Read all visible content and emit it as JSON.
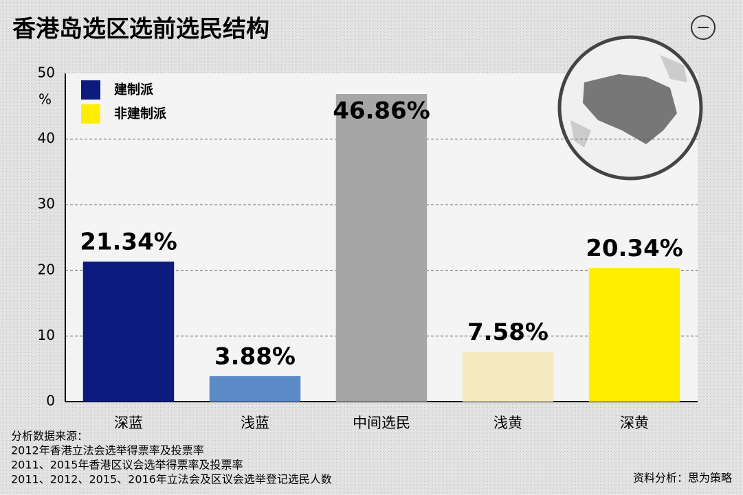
{
  "chart_data": {
    "type": "bar",
    "title": "香港岛选区选前选民结构",
    "y_label": "%",
    "categories": [
      "深蓝",
      "浅蓝",
      "中间选民",
      "浅黄",
      "深黄"
    ],
    "values": [
      21.34,
      3.88,
      46.86,
      7.58,
      20.34
    ],
    "value_labels": [
      "21.34%",
      "3.88%",
      "46.86%",
      "7.58%",
      "20.34%"
    ],
    "colors": [
      "#0d1a7e",
      "#5b8ac6",
      "#a6a6a6",
      "#f5e9c0",
      "#ffee00"
    ],
    "legend": [
      {
        "name": "建制派",
        "color": "#0d1a7e"
      },
      {
        "name": "非建制派",
        "color": "#ffee00"
      }
    ],
    "ylim": [
      0,
      50
    ],
    "yticks": [
      0,
      10,
      20,
      30,
      40,
      50
    ],
    "grid": true,
    "source": [
      "分析数据来源：",
      "2012年香港立法会选举得票率及投票率",
      "2011、2015年香港区议会选举得票率及投票率",
      "2011、2012、2015、2016年立法会及区议会选举登记选民人数"
    ],
    "credit": "资料分析：思为策略"
  }
}
